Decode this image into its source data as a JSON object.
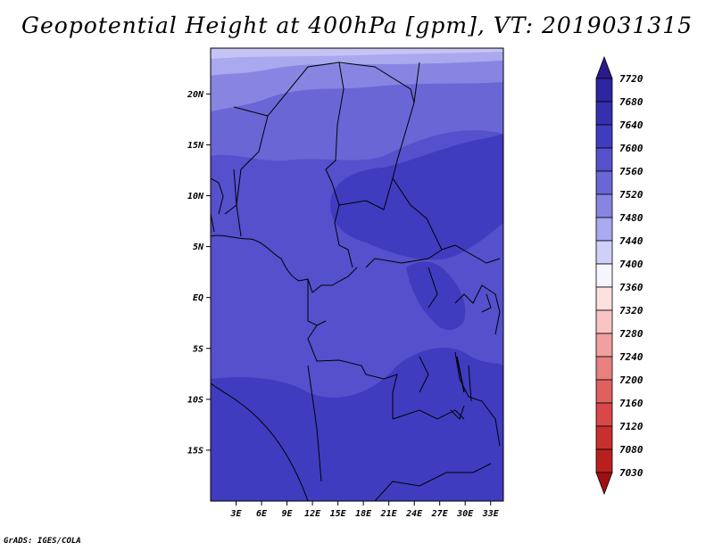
{
  "title": "Geopotential Height at 400hPa [gpm], VT: 2019031315",
  "footer": "GrADS: IGES/COLA",
  "map": {
    "lon_range": [
      0,
      34.5
    ],
    "lat_range": [
      -20,
      24.5
    ],
    "lat_ticks": [
      {
        "value": 20,
        "label": "20N"
      },
      {
        "value": 15,
        "label": "15N"
      },
      {
        "value": 10,
        "label": "10N"
      },
      {
        "value": 5,
        "label": "5N"
      },
      {
        "value": 0,
        "label": "EQ"
      },
      {
        "value": -5,
        "label": "5S"
      },
      {
        "value": -10,
        "label": "10S"
      },
      {
        "value": -15,
        "label": "15S"
      }
    ],
    "lon_ticks": [
      {
        "value": 3,
        "label": "3E"
      },
      {
        "value": 6,
        "label": "6E"
      },
      {
        "value": 9,
        "label": "9E"
      },
      {
        "value": 12,
        "label": "12E"
      },
      {
        "value": 15,
        "label": "15E"
      },
      {
        "value": 18,
        "label": "18E"
      },
      {
        "value": 21,
        "label": "21E"
      },
      {
        "value": 24,
        "label": "24E"
      },
      {
        "value": 27,
        "label": "27E"
      },
      {
        "value": 30,
        "label": "30E"
      },
      {
        "value": 33,
        "label": "33E"
      }
    ]
  },
  "colorbar": {
    "labels": [
      "7720",
      "7680",
      "7640",
      "7600",
      "7560",
      "7520",
      "7480",
      "7440",
      "7400",
      "7360",
      "7320",
      "7280",
      "7240",
      "7200",
      "7160",
      "7120",
      "7080",
      "7030"
    ],
    "colors": [
      "#2a1a8c",
      "#2e25a0",
      "#3530b0",
      "#3f3cbf",
      "#5550cc",
      "#6a66d6",
      "#8885e2",
      "#aaa8ee",
      "#cfcff8",
      "#f5f5ff",
      "#fde0e0",
      "#f8c4c4",
      "#f0a0a0",
      "#e88080",
      "#e06060",
      "#d84848",
      "#c83030",
      "#b82020",
      "#a01010"
    ]
  },
  "legend_levels": [
    7440,
    7480,
    7520,
    7560,
    7600,
    7640
  ]
}
